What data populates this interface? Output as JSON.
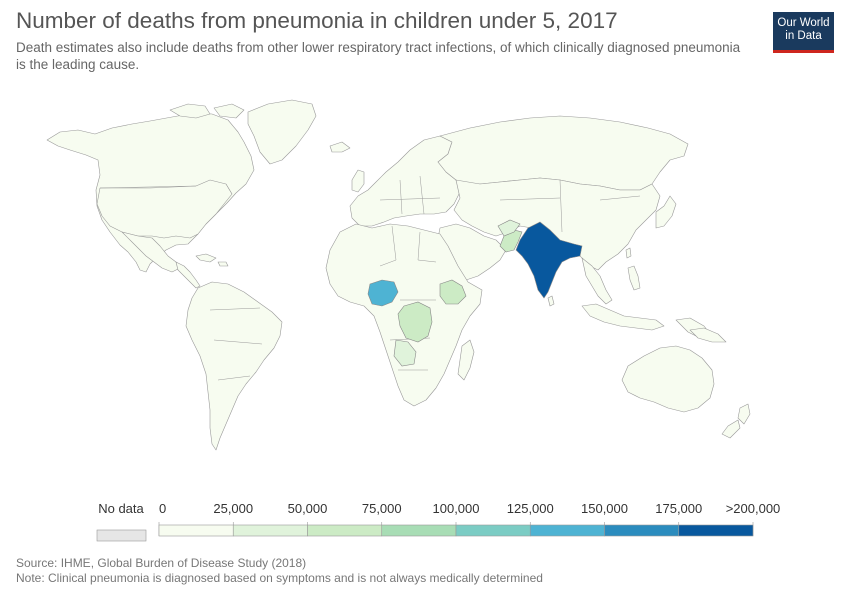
{
  "title": "Number of deaths from pneumonia in children under 5, 2017",
  "subtitle": "Death estimates also include deaths from other lower respiratory tract infections, of which clinically diagnosed pneumonia is the leading cause.",
  "logo": {
    "line1": "Our World",
    "line2": "in Data",
    "color": "#1a3a5e",
    "underline_color": "#ce261e"
  },
  "legend": {
    "no_data_label": "No data",
    "no_data_color": "#e6e6e6",
    "tick_labels": [
      "0",
      "25,000",
      "50,000",
      "75,000",
      "100,000",
      "125,000",
      "150,000",
      "175,000",
      ">200,000"
    ],
    "bins": [
      {
        "range": "0–25,000",
        "color": "#f7fcf0"
      },
      {
        "range": "25,000–50,000",
        "color": "#e0f3db"
      },
      {
        "range": "50,000–75,000",
        "color": "#ccebc5"
      },
      {
        "range": "75,000–100,000",
        "color": "#a8ddb5"
      },
      {
        "range": "100,000–125,000",
        "color": "#7bccc4"
      },
      {
        "range": "125,000–150,000",
        "color": "#4eb3d3"
      },
      {
        "range": "150,000–175,000",
        "color": "#2b8cbe"
      },
      {
        "range": "175,000–200,000",
        "color": "#08589e"
      }
    ]
  },
  "map": {
    "base_color": "#f7fcf0",
    "border_color": "#999999",
    "highlighted_countries": [
      {
        "name": "India",
        "color": "#08589e"
      },
      {
        "name": "Nigeria",
        "color": "#4eb3d3"
      },
      {
        "name": "Pakistan",
        "color": "#ccebc5"
      },
      {
        "name": "Ethiopia",
        "color": "#ccebc5"
      },
      {
        "name": "DR Congo",
        "color": "#ccebc5"
      },
      {
        "name": "Angola",
        "color": "#e0f3db"
      },
      {
        "name": "Afghanistan",
        "color": "#e0f3db"
      }
    ]
  },
  "footer": {
    "source": "Source: IHME, Global Burden of Disease Study (2018)",
    "note": "Note: Clinical pneumonia is diagnosed based on symptoms and is not always medically determined"
  }
}
